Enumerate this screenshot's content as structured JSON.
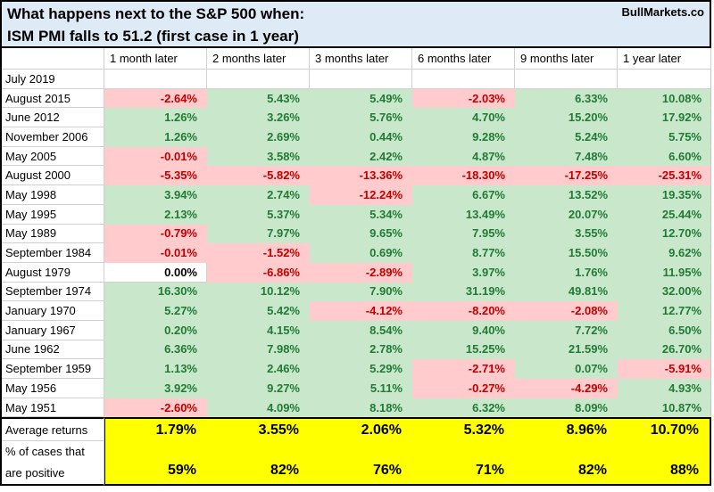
{
  "header": {
    "title_line1": "What happens next to the S&P 500 when:",
    "title_line2": "ISM PMI falls to 51.2 (first case in 1 year)",
    "brand": "BullMarkets.co"
  },
  "colors": {
    "title_bg": "#DEEAF5",
    "positive_fill": "#C9E8CB",
    "negative_fill": "#FFCBCC",
    "positive_text": "#217A36",
    "negative_text": "#C00000",
    "summary_bg": "#FFFF00",
    "gridline": "#D0D0D0",
    "border": "#000000"
  },
  "chart_data": {
    "type": "table",
    "columns": [
      "",
      "1 month later",
      "2 months later",
      "3 months later",
      "6 months later",
      "9 months later",
      "1 year later"
    ],
    "rows": [
      {
        "label": "July 2019",
        "values": [
          "",
          "",
          "",
          "",
          "",
          ""
        ],
        "fills": [
          "none",
          "none",
          "none",
          "none",
          "none",
          "none"
        ]
      },
      {
        "label": "August 2015",
        "values": [
          "-2.64%",
          "5.43%",
          "5.49%",
          "-2.03%",
          "6.33%",
          "10.08%"
        ],
        "fills": [
          "neg",
          "pos",
          "pos",
          "neg",
          "pos",
          "pos"
        ]
      },
      {
        "label": "June 2012",
        "values": [
          "1.26%",
          "3.26%",
          "5.76%",
          "4.70%",
          "15.20%",
          "17.92%"
        ],
        "fills": [
          "pos",
          "pos",
          "pos",
          "pos",
          "pos",
          "pos"
        ]
      },
      {
        "label": "November 2006",
        "values": [
          "1.26%",
          "2.69%",
          "0.44%",
          "9.28%",
          "5.24%",
          "5.75%"
        ],
        "fills": [
          "pos",
          "pos",
          "pos",
          "pos",
          "pos",
          "pos"
        ]
      },
      {
        "label": "May 2005",
        "values": [
          "-0.01%",
          "3.58%",
          "2.42%",
          "4.87%",
          "7.48%",
          "6.60%"
        ],
        "fills": [
          "neg",
          "pos",
          "pos",
          "pos",
          "pos",
          "pos"
        ]
      },
      {
        "label": "August 2000",
        "values": [
          "-5.35%",
          "-5.82%",
          "-13.36%",
          "-18.30%",
          "-17.25%",
          "-25.31%"
        ],
        "fills": [
          "neg",
          "neg",
          "neg",
          "neg",
          "neg",
          "neg"
        ]
      },
      {
        "label": "May 1998",
        "values": [
          "3.94%",
          "2.74%",
          "-12.24%",
          "6.67%",
          "13.52%",
          "19.35%"
        ],
        "fills": [
          "pos",
          "pos",
          "neg",
          "pos",
          "pos",
          "pos"
        ]
      },
      {
        "label": "May 1995",
        "values": [
          "2.13%",
          "5.37%",
          "5.34%",
          "13.49%",
          "20.07%",
          "25.44%"
        ],
        "fills": [
          "pos",
          "pos",
          "pos",
          "pos",
          "pos",
          "pos"
        ]
      },
      {
        "label": "May 1989",
        "values": [
          "-0.79%",
          "7.97%",
          "9.65%",
          "7.95%",
          "3.55%",
          "12.70%"
        ],
        "fills": [
          "neg",
          "pos",
          "pos",
          "pos",
          "pos",
          "pos"
        ]
      },
      {
        "label": "September 1984",
        "values": [
          "-0.01%",
          "-1.52%",
          "0.69%",
          "8.77%",
          "15.50%",
          "9.62%"
        ],
        "fills": [
          "neg",
          "neg",
          "pos",
          "pos",
          "pos",
          "pos"
        ]
      },
      {
        "label": "August 1979",
        "values": [
          "0.00%",
          "-6.86%",
          "-2.89%",
          "3.97%",
          "1.76%",
          "11.95%"
        ],
        "fills": [
          "zero",
          "neg",
          "neg",
          "pos",
          "pos",
          "pos"
        ]
      },
      {
        "label": "September 1974",
        "values": [
          "16.30%",
          "10.12%",
          "7.90%",
          "31.19%",
          "49.81%",
          "32.00%"
        ],
        "fills": [
          "pos",
          "pos",
          "pos",
          "pos",
          "pos",
          "pos"
        ]
      },
      {
        "label": "January 1970",
        "values": [
          "5.27%",
          "5.42%",
          "-4.12%",
          "-8.20%",
          "-2.08%",
          "12.77%"
        ],
        "fills": [
          "pos",
          "pos",
          "neg",
          "neg",
          "neg",
          "pos"
        ]
      },
      {
        "label": "January 1967",
        "values": [
          "0.20%",
          "4.15%",
          "8.54%",
          "9.40%",
          "7.72%",
          "6.50%"
        ],
        "fills": [
          "pos",
          "pos",
          "pos",
          "pos",
          "pos",
          "pos"
        ]
      },
      {
        "label": "June 1962",
        "values": [
          "6.36%",
          "7.98%",
          "2.78%",
          "15.25%",
          "21.59%",
          "26.70%"
        ],
        "fills": [
          "pos",
          "pos",
          "pos",
          "pos",
          "pos",
          "pos"
        ]
      },
      {
        "label": "September 1959",
        "values": [
          "1.13%",
          "2.46%",
          "5.29%",
          "-2.71%",
          "0.07%",
          "-5.91%"
        ],
        "fills": [
          "pos",
          "pos",
          "pos",
          "neg",
          "pos",
          "neg"
        ]
      },
      {
        "label": "May 1956",
        "values": [
          "3.92%",
          "9.27%",
          "5.11%",
          "-0.27%",
          "-4.29%",
          "4.93%"
        ],
        "fills": [
          "pos",
          "pos",
          "pos",
          "neg",
          "neg",
          "pos"
        ]
      },
      {
        "label": "May 1951",
        "values": [
          "-2.60%",
          "4.09%",
          "8.18%",
          "6.32%",
          "8.09%",
          "10.87%"
        ],
        "fills": [
          "neg",
          "pos",
          "pos",
          "pos",
          "pos",
          "pos"
        ]
      }
    ],
    "summary": {
      "average": {
        "label": "Average returns",
        "values": [
          "1.79%",
          "3.55%",
          "2.06%",
          "5.32%",
          "8.96%",
          "10.70%"
        ]
      },
      "percent_positive": {
        "label_lines": [
          "% of cases that",
          "are positive"
        ],
        "values": [
          "59%",
          "82%",
          "76%",
          "71%",
          "82%",
          "88%"
        ]
      }
    }
  }
}
